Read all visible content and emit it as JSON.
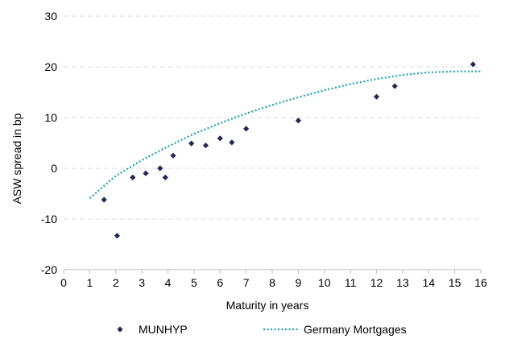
{
  "chart_data": {
    "type": "scatter",
    "xlabel": "Maturity in years",
    "ylabel": "ASW spread in bp",
    "xlim": [
      0,
      16
    ],
    "ylim": [
      -20,
      30
    ],
    "x_ticks": [
      "0",
      "1",
      "2",
      "3",
      "4",
      "5",
      "6",
      "7",
      "8",
      "9",
      "10",
      "11",
      "12",
      "13",
      "14",
      "15",
      "16"
    ],
    "y_ticks": [
      "-20",
      "-10",
      "0",
      "10",
      "20",
      "30"
    ],
    "grid": "horizontal-dashed",
    "legend_position": "bottom",
    "series": [
      {
        "name": "MUNHYP",
        "style": "markers",
        "color": "#1f2a5c",
        "points": [
          {
            "x": 1.55,
            "y": -6.2
          },
          {
            "x": 2.05,
            "y": -13.3
          },
          {
            "x": 2.65,
            "y": -1.8
          },
          {
            "x": 3.15,
            "y": -1.0
          },
          {
            "x": 3.7,
            "y": 0.0
          },
          {
            "x": 3.9,
            "y": -1.8
          },
          {
            "x": 4.2,
            "y": 2.5
          },
          {
            "x": 4.9,
            "y": 4.9
          },
          {
            "x": 5.45,
            "y": 4.5
          },
          {
            "x": 6.0,
            "y": 5.9
          },
          {
            "x": 6.45,
            "y": 5.1
          },
          {
            "x": 7.0,
            "y": 7.8
          },
          {
            "x": 9.0,
            "y": 9.4
          },
          {
            "x": 12.0,
            "y": 14.1
          },
          {
            "x": 12.7,
            "y": 16.2
          },
          {
            "x": 15.7,
            "y": 20.5
          }
        ]
      },
      {
        "name": "Germany Mortgages",
        "style": "dotted-line",
        "color": "#16a3b5",
        "points": [
          {
            "x": 1.0,
            "y": -5.9
          },
          {
            "x": 2.0,
            "y": -1.5
          },
          {
            "x": 3.0,
            "y": 1.6
          },
          {
            "x": 4.0,
            "y": 4.3
          },
          {
            "x": 5.0,
            "y": 6.8
          },
          {
            "x": 6.0,
            "y": 8.9
          },
          {
            "x": 7.0,
            "y": 10.8
          },
          {
            "x": 8.0,
            "y": 12.5
          },
          {
            "x": 9.0,
            "y": 14.0
          },
          {
            "x": 10.0,
            "y": 15.4
          },
          {
            "x": 11.0,
            "y": 16.6
          },
          {
            "x": 12.0,
            "y": 17.6
          },
          {
            "x": 13.0,
            "y": 18.4
          },
          {
            "x": 14.0,
            "y": 18.9
          },
          {
            "x": 15.0,
            "y": 19.1
          },
          {
            "x": 16.0,
            "y": 19.1
          }
        ]
      }
    ]
  }
}
